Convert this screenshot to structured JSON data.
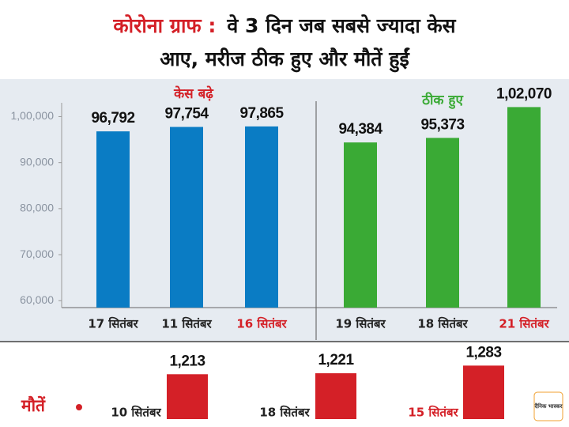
{
  "title": {
    "label": "कोरोना ग्राफ :",
    "lines": [
      "वे 3 दिन जब सबसे ज्यादा केस",
      "आए, मरीज ठीक हुए और मौतें हुईं"
    ]
  },
  "chart_data": [
    {
      "type": "bar",
      "title": "केस बढ़े",
      "categories": [
        "17 सितंबर",
        "11 सितंबर",
        "16 सितंबर"
      ],
      "values": [
        96792,
        97754,
        97865
      ],
      "value_labels": [
        "96,792",
        "97,754",
        "97,865"
      ],
      "color": "#0a7cc4",
      "title_color": "#d42027",
      "category_colors": [
        "#222222",
        "#222222",
        "#d42027"
      ],
      "ylim": [
        58500,
        103000
      ],
      "yticks": [
        {
          "value": 60000,
          "label": "60,000"
        },
        {
          "value": 70000,
          "label": "70,000"
        },
        {
          "value": 80000,
          "label": "80,000"
        },
        {
          "value": 90000,
          "label": "90,000"
        },
        {
          "value": 100000,
          "label": "1,00,000"
        }
      ]
    },
    {
      "type": "bar",
      "title": "ठीक हुए",
      "categories": [
        "19 सितंबर",
        "18 सितंबर",
        "21 सितंबर"
      ],
      "values": [
        94384,
        95373,
        102070
      ],
      "value_labels": [
        "94,384",
        "95,373",
        "1,02,070"
      ],
      "color": "#3aaa35",
      "title_color": "#3aaa35",
      "category_colors": [
        "#222222",
        "#222222",
        "#d42027"
      ],
      "ylim": [
        58500,
        103000
      ]
    },
    {
      "type": "bar",
      "title": "मौतें",
      "categories": [
        "10 सितंबर",
        "18 सितंबर",
        "15 सितंबर"
      ],
      "values": [
        1213,
        1221,
        1283
      ],
      "value_labels": [
        "1,213",
        "1,221",
        "1,283"
      ],
      "color": "#d42027",
      "title_color": "#d42027",
      "category_colors": [
        "#222222",
        "#222222",
        "#d42027"
      ],
      "ylim": [
        850,
        1330
      ]
    }
  ],
  "logo": "दैनिक भास्कर"
}
